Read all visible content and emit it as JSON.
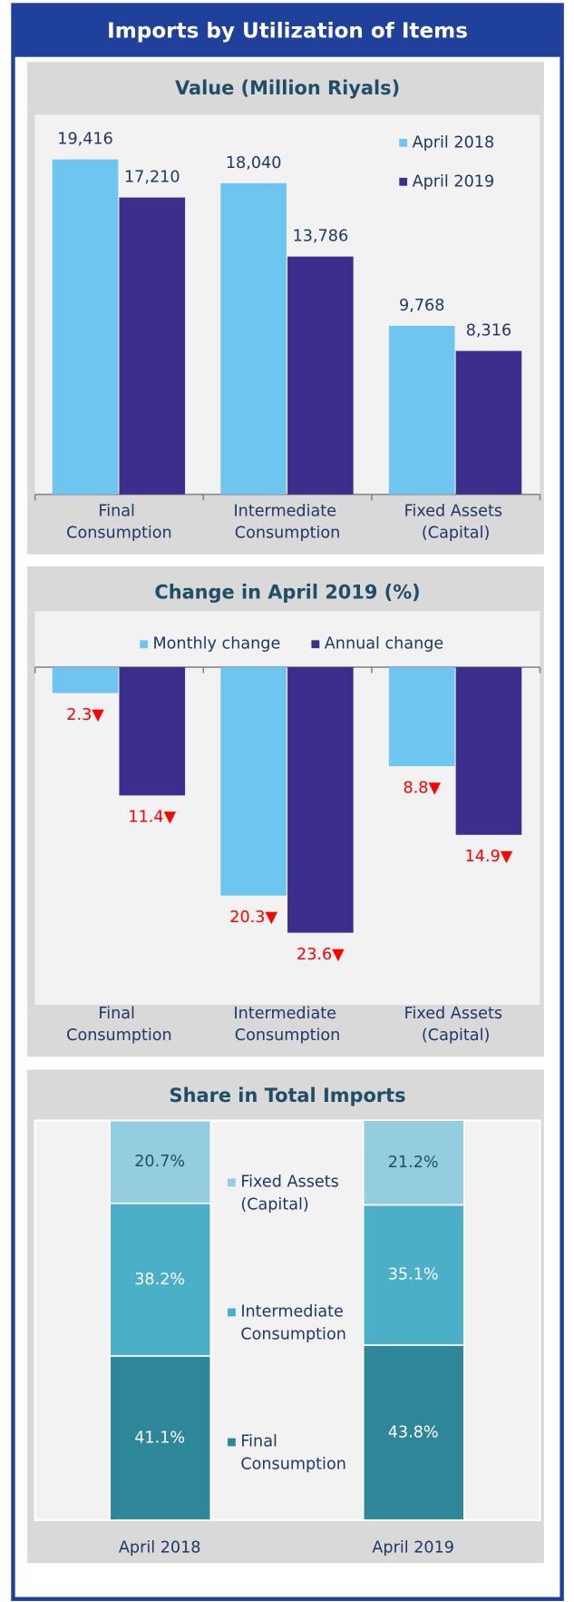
{
  "title": "Imports by Utilization of Items",
  "chart_data": [
    {
      "type": "bar",
      "title": "Value (Million Riyals)",
      "categories": [
        "Final Consumption",
        "Intermediate Consumption",
        "Fixed Assets (Capital)"
      ],
      "series": [
        {
          "name": "April 2018",
          "color": "#6ec6f0",
          "values": [
            19416,
            18040,
            9768
          ],
          "value_labels": [
            "19,416",
            "18,040",
            "9,768"
          ]
        },
        {
          "name": "April 2019",
          "color": "#3b2e8c",
          "values": [
            17210,
            13786,
            8316
          ],
          "value_labels": [
            "17,210",
            "13,786",
            "8,316"
          ]
        }
      ],
      "ylim": [
        0,
        22000
      ],
      "legend": "upper right"
    },
    {
      "type": "bar",
      "title": "Change in April 2019 (%)",
      "categories": [
        "Final Consumption",
        "Intermediate Consumption",
        "Fixed Assets (Capital)"
      ],
      "series": [
        {
          "name": "Monthly change",
          "color": "#6ec6f0",
          "values": [
            -2.3,
            -20.3,
            -8.8
          ],
          "value_labels": [
            "2.3▼",
            "20.3▼",
            "8.8▼"
          ]
        },
        {
          "name": "Annual change",
          "color": "#3b2e8c",
          "values": [
            -11.4,
            -23.6,
            -14.9
          ],
          "value_labels": [
            "11.4▼",
            "23.6▼",
            "14.9▼"
          ]
        }
      ],
      "ylim": [
        -30,
        0
      ],
      "legend": "upper center",
      "label_color": "#ff0000"
    },
    {
      "type": "stacked_bar",
      "title": "Share in Total Imports",
      "categories": [
        "April 2018",
        "April 2019"
      ],
      "series": [
        {
          "name": "Final Consumption",
          "color": "#2e8799",
          "values": [
            41.1,
            43.8
          ],
          "value_labels": [
            "41.1%",
            "43.8%"
          ]
        },
        {
          "name": "Intermediate Consumption",
          "color": "#4bafc8",
          "values": [
            38.2,
            35.1
          ],
          "value_labels": [
            "38.2%",
            "35.1%"
          ]
        },
        {
          "name": "Fixed Assets (Capital)",
          "color": "#93cedf",
          "values": [
            20.7,
            21.2
          ],
          "value_labels": [
            "20.7%",
            "21.2%"
          ]
        }
      ],
      "ylim": [
        0,
        100
      ],
      "legend": "center"
    }
  ]
}
